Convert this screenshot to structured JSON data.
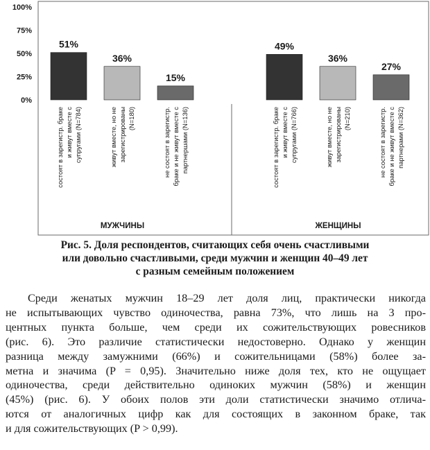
{
  "chart_data": {
    "type": "bar",
    "ylim": [
      0,
      100
    ],
    "yticks": [
      "0%",
      "25%",
      "50%",
      "75%",
      "100%"
    ],
    "groups": [
      {
        "label": "МУЖЧИНЫ",
        "bars": [
          {
            "label_lines": [
              "состоят в зарегистр. браке",
              "и живут вместе с",
              "супругами (N=784)"
            ],
            "value": 51,
            "value_label": "51%",
            "color": "#333333"
          },
          {
            "label_lines": [
              "живут вместе, но не",
              "зарегистрированы",
              "(N=180)"
            ],
            "value": 36,
            "value_label": "36%",
            "color": "#b8b8b8"
          },
          {
            "label_lines": [
              "не состоят в зарегистр.",
              "браке и не живут вместе с",
              "партнершами (N=136)"
            ],
            "value": 15,
            "value_label": "15%",
            "color": "#6a6a6a"
          }
        ]
      },
      {
        "label": "ЖЕНЩИНЫ",
        "bars": [
          {
            "label_lines": [
              "состоят в зарегистр. браке",
              "и живут вместе с",
              "супругами (N=766)"
            ],
            "value": 49,
            "value_label": "49%",
            "color": "#333333"
          },
          {
            "label_lines": [
              "живут вместе, но не",
              "зарегистрированы",
              "(N=210)"
            ],
            "value": 36,
            "value_label": "36%",
            "color": "#b8b8b8"
          },
          {
            "label_lines": [
              "не состоят в зарегистр.",
              "браке и не живут вместе с",
              "партнерами (N=362)"
            ],
            "value": 27,
            "value_label": "27%",
            "color": "#6a6a6a"
          }
        ]
      }
    ]
  },
  "caption": {
    "lines": [
      "Рис. 5. Доля респондентов, считающих себя очень счастливыми",
      "или довольно счастливыми, среди мужчин и женщин 40–49 лет",
      "с разным семейным положением"
    ]
  },
  "body": {
    "lines": [
      "Среди женатых мужчин 18–29 лет доля лиц, практически никогда",
      "не испытывающих чувство одиночества, равна 73%, что лишь на 3 про-",
      "центных пункта больше, чем среди их сожительствующих ровесников",
      "(рис. 6). Это различие статистически недостоверно. Однако у женщин",
      "разница между замужними (66%) и сожительницами (58%) более за-",
      "метна и значима (P = 0,95). Значительно ниже доля тех, кто не ощущает",
      "одиночества, среди действительно одиноких мужчин (58%) и женщин",
      "(45%) (рис. 6). У обоих полов эти доли статистически значимо отлича-",
      "ются от аналогичных цифр как для состоящих в законном браке, так",
      "и для сожительствующих (P > 0,99)."
    ]
  }
}
